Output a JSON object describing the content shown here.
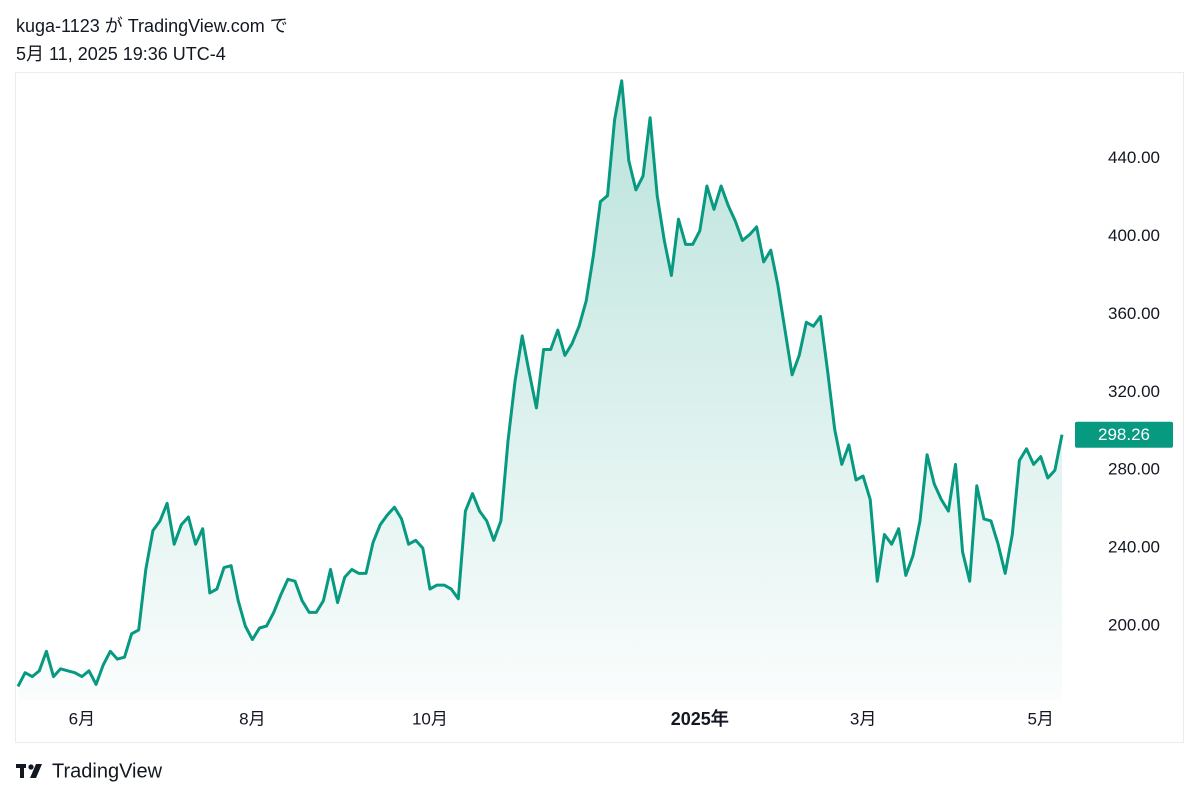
{
  "header": {
    "line1": "kuga-1123 が TradingView.com で",
    "line2": "5月 11, 2025 19:36 UTC-4"
  },
  "footer": {
    "brand": "TradingView"
  },
  "chart_data": {
    "type": "area",
    "x": [
      0,
      1,
      2,
      3,
      4,
      5,
      6,
      7,
      8,
      9,
      10,
      11,
      12,
      13,
      14,
      15,
      16,
      17,
      18,
      19,
      20,
      21,
      22,
      23,
      24,
      25,
      26,
      27,
      28,
      29,
      30,
      31,
      32,
      33,
      34,
      35,
      36,
      37,
      38,
      39,
      40,
      41,
      42,
      43,
      44,
      45,
      46,
      47,
      48,
      49,
      50,
      51,
      52,
      53,
      54,
      55,
      56,
      57,
      58,
      59,
      60,
      61,
      62,
      63,
      64,
      65,
      66,
      67,
      68,
      69,
      70,
      71,
      72,
      73,
      74,
      75,
      76,
      77,
      78,
      79,
      80,
      81,
      82,
      83,
      84,
      85,
      86,
      87,
      88,
      89,
      90,
      91,
      92,
      93,
      94,
      95,
      96,
      97,
      98,
      99,
      100,
      101,
      102,
      103,
      104,
      105,
      106,
      107,
      108,
      109,
      110,
      111,
      112,
      113,
      114,
      115,
      116,
      117,
      118,
      119,
      120,
      121,
      122,
      123,
      124,
      125,
      126,
      127,
      128,
      129,
      130,
      131,
      132,
      133,
      134,
      135,
      136,
      137,
      138,
      139,
      140,
      141,
      142,
      143,
      144,
      145,
      146,
      147
    ],
    "series": [
      {
        "color": "#089981",
        "values": [
          169,
          176,
          174,
          177,
          187,
          174,
          178,
          177,
          176,
          174,
          177,
          170,
          180,
          187,
          183,
          184,
          196,
          198,
          229,
          249,
          254,
          263,
          242,
          252,
          256,
          242,
          250,
          217,
          219,
          230,
          231,
          213,
          200,
          193,
          199,
          200,
          207,
          216,
          224,
          223,
          213,
          207,
          207,
          213,
          229,
          212,
          225,
          229,
          227,
          227,
          243,
          252,
          257,
          261,
          255,
          242,
          244,
          240,
          219,
          221,
          221,
          219,
          214,
          259,
          268,
          259,
          254,
          244,
          254,
          295,
          326,
          349,
          330,
          312,
          342,
          342,
          352,
          339,
          345,
          354,
          367,
          390,
          418,
          421,
          460,
          480,
          439,
          424,
          431,
          461,
          421,
          398,
          380,
          409,
          396,
          396,
          403,
          426,
          414,
          426,
          416,
          408,
          398,
          401,
          405,
          387,
          393,
          375,
          352,
          329,
          339,
          356,
          354,
          359,
          331,
          301,
          283,
          293,
          275,
          277,
          265,
          223,
          247,
          242,
          250,
          226,
          236,
          254,
          288,
          273,
          265,
          259,
          283,
          238,
          223,
          272,
          255,
          254,
          242,
          227,
          247,
          285,
          291,
          283,
          287,
          276,
          280,
          298.26
        ]
      }
    ],
    "xlim": [
      0,
      147
    ],
    "xticks": [
      {
        "value": 9,
        "label": "6月"
      },
      {
        "value": 33,
        "label": "8月"
      },
      {
        "value": 58,
        "label": "10月"
      },
      {
        "value": 96,
        "label": "2025年"
      },
      {
        "value": 119,
        "label": "3月"
      },
      {
        "value": 144,
        "label": "5月"
      }
    ],
    "ylim": [
      162,
      483
    ],
    "yticks": [
      {
        "value": 200,
        "label": "200.00"
      },
      {
        "value": 240,
        "label": "240.00"
      },
      {
        "value": 280,
        "label": "280.00"
      },
      {
        "value": 320,
        "label": "320.00"
      },
      {
        "value": 360,
        "label": "360.00"
      },
      {
        "value": 400,
        "label": "400.00"
      },
      {
        "value": 440,
        "label": "440.00"
      }
    ],
    "bold_xtick": 3
  }
}
